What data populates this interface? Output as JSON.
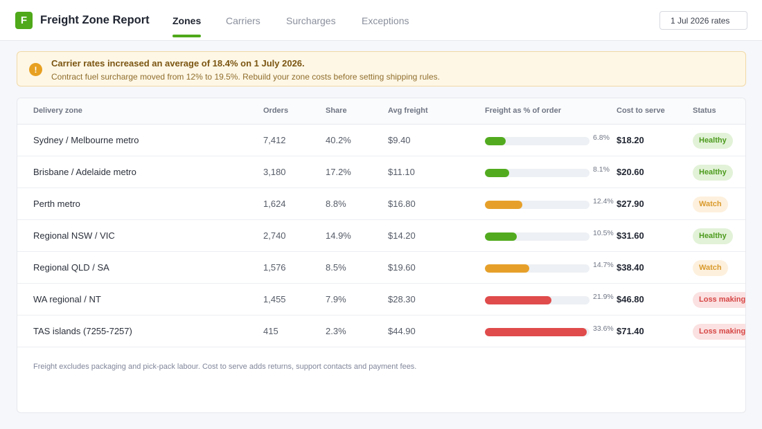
{
  "app": {
    "logo_letter": "F",
    "title": "Freight Zone Report"
  },
  "tabs": [
    {
      "label": "Zones",
      "active": true
    },
    {
      "label": "Carriers",
      "active": false
    },
    {
      "label": "Surcharges",
      "active": false
    },
    {
      "label": "Exceptions",
      "active": false
    }
  ],
  "rates_select": {
    "value": "1 Jul 2026 rates"
  },
  "alert": {
    "icon": "exclamation-icon",
    "title": "Carrier rates increased an average of 18.4% on 1 July 2026.",
    "body": "Contract fuel surcharge moved from 12% to 19.5%. Rebuild your zone costs before setting shipping rules."
  },
  "table": {
    "headers": {
      "zone": "Delivery zone",
      "orders": "Orders",
      "share": "Share",
      "avg_freight": "Avg freight",
      "freight_pct": "Freight as % of order",
      "cost": "Cost to serve",
      "status": "Status"
    },
    "rows": [
      {
        "zone": "Sydney / Melbourne metro",
        "orders": "7,412",
        "share": "40.2%",
        "avg_freight": "$9.40",
        "freight_pct": 6.8,
        "freight_pct_label": "6.8%",
        "cost": "$18.20",
        "status": "Healthy"
      },
      {
        "zone": "Brisbane / Adelaide metro",
        "orders": "3,180",
        "share": "17.2%",
        "avg_freight": "$11.10",
        "freight_pct": 8.1,
        "freight_pct_label": "8.1%",
        "cost": "$20.60",
        "status": "Healthy"
      },
      {
        "zone": "Perth metro",
        "orders": "1,624",
        "share": "8.8%",
        "avg_freight": "$16.80",
        "freight_pct": 12.4,
        "freight_pct_label": "12.4%",
        "cost": "$27.90",
        "status": "Watch"
      },
      {
        "zone": "Regional NSW / VIC",
        "orders": "2,740",
        "share": "14.9%",
        "avg_freight": "$14.20",
        "freight_pct": 10.5,
        "freight_pct_label": "10.5%",
        "cost": "$31.60",
        "status": "Healthy"
      },
      {
        "zone": "Regional QLD / SA",
        "orders": "1,576",
        "share": "8.5%",
        "avg_freight": "$19.60",
        "freight_pct": 14.7,
        "freight_pct_label": "14.7%",
        "cost": "$38.40",
        "status": "Watch"
      },
      {
        "zone": "WA regional / NT",
        "orders": "1,455",
        "share": "7.9%",
        "avg_freight": "$28.30",
        "freight_pct": 21.9,
        "freight_pct_label": "21.9%",
        "cost": "$46.80",
        "status": "Loss making"
      },
      {
        "zone": "TAS islands (7255-7257)",
        "orders": "415",
        "share": "2.3%",
        "avg_freight": "$44.90",
        "freight_pct": 33.6,
        "freight_pct_label": "33.6%",
        "cost": "$71.40",
        "status": "Loss making"
      }
    ]
  },
  "footnote": "Freight excludes packaging and pick-pack labour. Cost to serve adds returns, support contacts and payment fees.",
  "status_colors": {
    "Healthy": {
      "bar": "#52ab1f",
      "badge_bg": "#e2f2d8",
      "badge_fg": "#4c9a1d"
    },
    "Watch": {
      "bar": "#e6a02a",
      "badge_bg": "#fdf0dd",
      "badge_fg": "#d99a2c"
    },
    "Loss making": {
      "bar": "#e04b4b",
      "badge_bg": "#fbe1e1",
      "badge_fg": "#d64545"
    }
  },
  "colors": {
    "accent": "#4fa91a"
  }
}
